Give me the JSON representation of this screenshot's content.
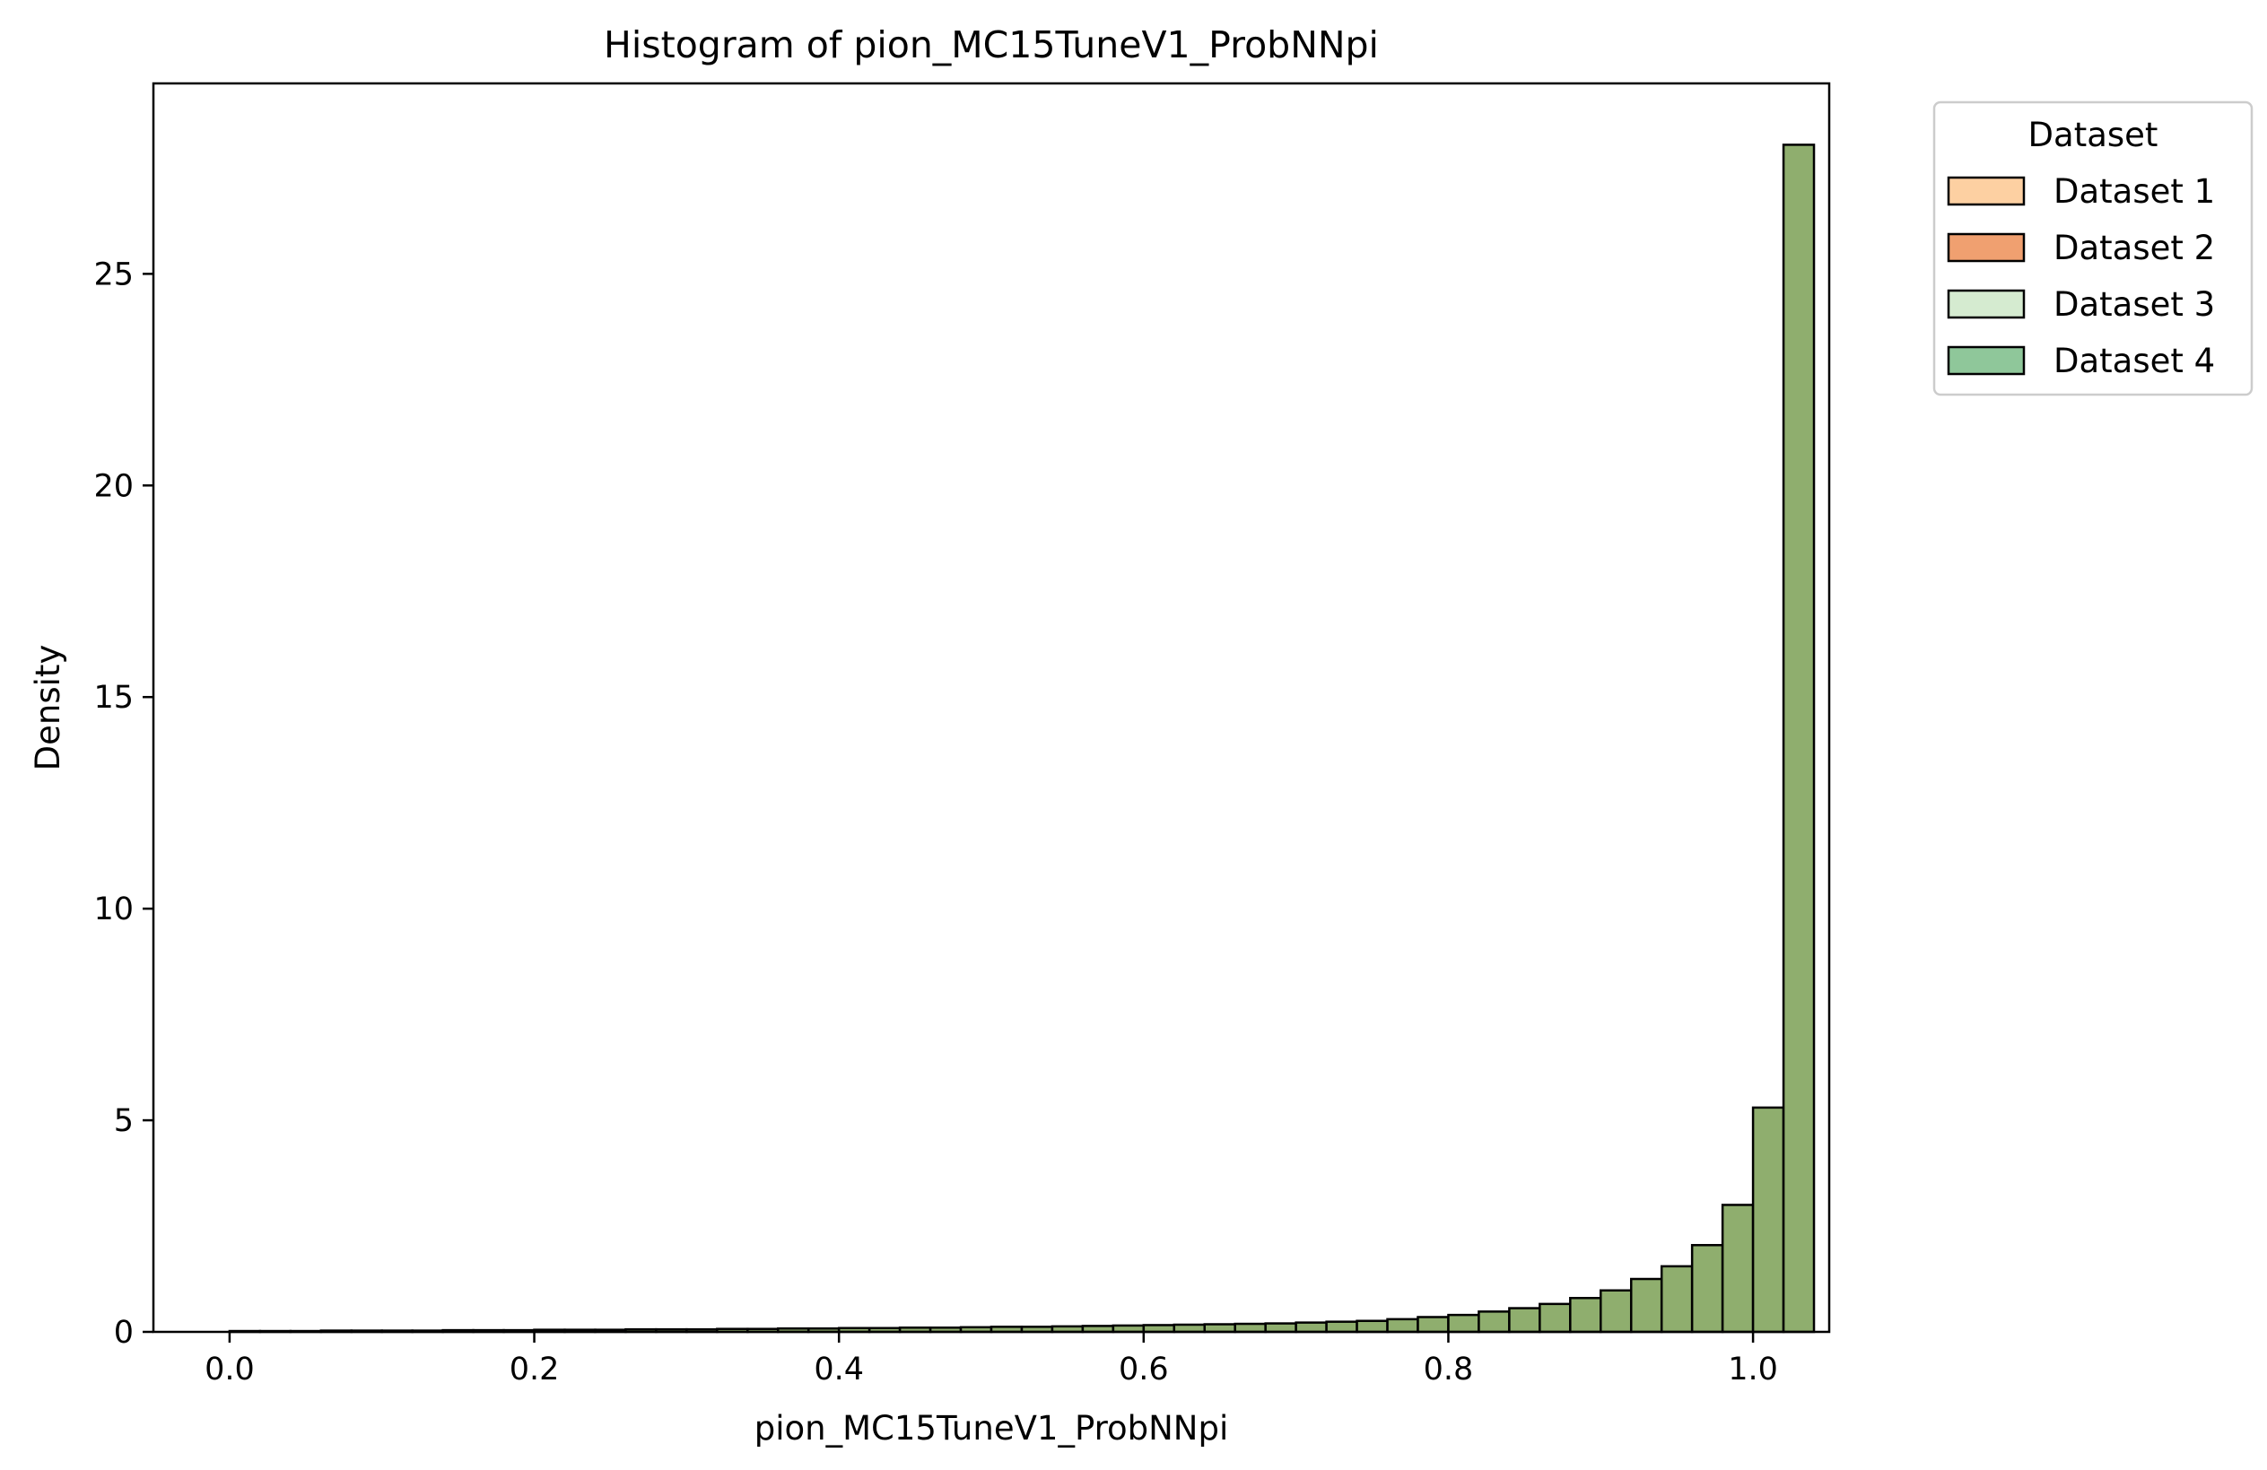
{
  "chart_data": {
    "type": "bar",
    "title": "Histogram of pion_MC15TuneV1_ProbNNpi",
    "xlabel": "pion_MC15TuneV1_ProbNNpi",
    "ylabel": "Density",
    "xlim": [
      -0.05,
      1.05
    ],
    "ylim": [
      0,
      29.5
    ],
    "xticks": [
      0.0,
      0.2,
      0.4,
      0.6,
      0.8,
      1.0
    ],
    "xtick_labels": [
      "0.0",
      "0.2",
      "0.4",
      "0.6",
      "0.8",
      "1.0"
    ],
    "yticks": [
      0,
      5,
      10,
      15,
      20,
      25
    ],
    "ytick_labels": [
      "0",
      "5",
      "10",
      "15",
      "20",
      "25"
    ],
    "grid": false,
    "legend": {
      "title": "Dataset",
      "placement": "outside-top-right",
      "entries": [
        {
          "name": "Dataset 1",
          "color": "#fdd0a2"
        },
        {
          "name": "Dataset 2",
          "color": "#f0a070"
        },
        {
          "name": "Dataset 3",
          "color": "#d5ebd0"
        },
        {
          "name": "Dataset 4",
          "color": "#8fc79a"
        }
      ]
    },
    "bin_width": 0.02,
    "bins_start": 0.0,
    "overlap_color": "#8fae6e",
    "values": [
      0.02,
      0.02,
      0.02,
      0.03,
      0.03,
      0.03,
      0.03,
      0.04,
      0.04,
      0.04,
      0.05,
      0.05,
      0.05,
      0.06,
      0.06,
      0.06,
      0.07,
      0.07,
      0.08,
      0.08,
      0.09,
      0.09,
      0.1,
      0.1,
      0.11,
      0.12,
      0.12,
      0.13,
      0.14,
      0.15,
      0.16,
      0.17,
      0.18,
      0.19,
      0.2,
      0.22,
      0.24,
      0.26,
      0.3,
      0.35,
      0.4,
      0.48,
      0.56,
      0.66,
      0.8,
      0.98,
      1.25,
      1.55,
      2.05,
      3.0,
      5.3,
      28.05
    ]
  }
}
